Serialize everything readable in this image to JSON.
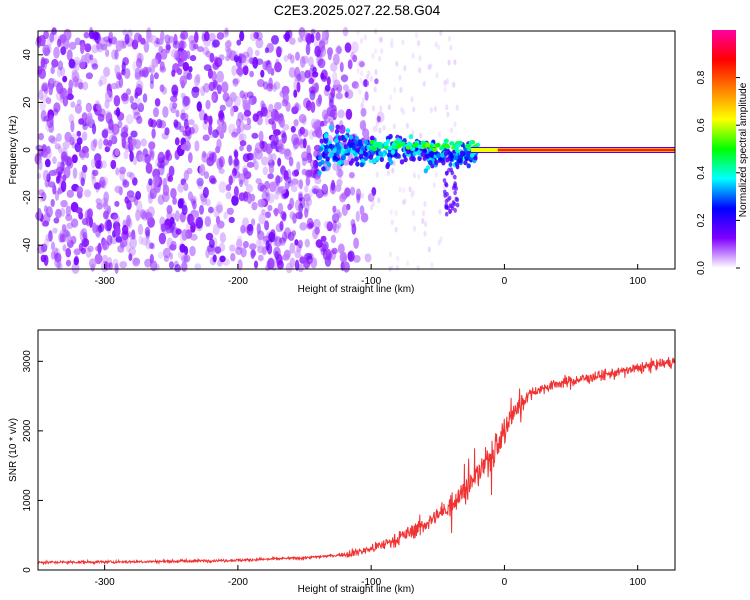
{
  "title": "C2E3.2025.027.22.58.G04",
  "chart_data": [
    {
      "type": "heatmap",
      "name": "spectrogram",
      "xlabel": "Height of straight line (km)",
      "ylabel": "Frequency (Hz)",
      "xlim": [
        -350,
        128
      ],
      "ylim": [
        -50,
        50
      ],
      "xticks": [
        -300,
        -200,
        -100,
        0,
        100
      ],
      "xtick_labels": [
        "-300",
        "-200",
        "-100",
        "0",
        "100"
      ],
      "yticks": [
        -40,
        -20,
        0,
        20,
        40
      ],
      "ytick_labels": [
        "-40",
        "-20",
        "0",
        "20",
        "40"
      ],
      "colorbar": {
        "label": "Normalized spectral amplitude",
        "range": [
          0,
          1
        ],
        "ticks": [
          0.0,
          0.2,
          0.4,
          0.6,
          0.8
        ],
        "tick_labels": [
          "0.0",
          "0.2",
          "0.4",
          "0.6",
          "0.8"
        ],
        "colors": [
          "#ffffff",
          "#8000ff",
          "#0000ff",
          "#00ffff",
          "#00ff00",
          "#ffff00",
          "#ff8000",
          "#ff0000",
          "#ff00a0"
        ]
      },
      "features": {
        "noise_region_x": [
          -350,
          -100
        ],
        "signal_line_frequency_hz": 0,
        "signal_onset_km": -140,
        "strong_signal_from_km": -5
      }
    },
    {
      "type": "line",
      "name": "snr",
      "xlabel": "Height of straight line (km)",
      "ylabel": "SNR (10 * v/v)",
      "xlim": [
        -350,
        128
      ],
      "ylim": [
        0,
        3450
      ],
      "xticks": [
        -300,
        -200,
        -100,
        0,
        100
      ],
      "xtick_labels": [
        "-300",
        "-200",
        "-100",
        "0",
        "100"
      ],
      "yticks": [
        0,
        1000,
        2000,
        3000
      ],
      "ytick_labels": [
        "0",
        "1000",
        "2000",
        "3000"
      ],
      "color": "#f03232",
      "series": [
        {
          "name": "SNR",
          "x": [
            -350,
            -300,
            -250,
            -200,
            -150,
            -120,
            -100,
            -80,
            -60,
            -45,
            -35,
            -25,
            -15,
            -5,
            0,
            5,
            10,
            20,
            30,
            40,
            60,
            80,
            100,
            128
          ],
          "y": [
            110,
            115,
            125,
            140,
            175,
            220,
            300,
            450,
            650,
            850,
            1050,
            1250,
            1500,
            1800,
            2000,
            2200,
            2350,
            2550,
            2620,
            2680,
            2750,
            2820,
            2900,
            3000
          ]
        }
      ]
    }
  ]
}
